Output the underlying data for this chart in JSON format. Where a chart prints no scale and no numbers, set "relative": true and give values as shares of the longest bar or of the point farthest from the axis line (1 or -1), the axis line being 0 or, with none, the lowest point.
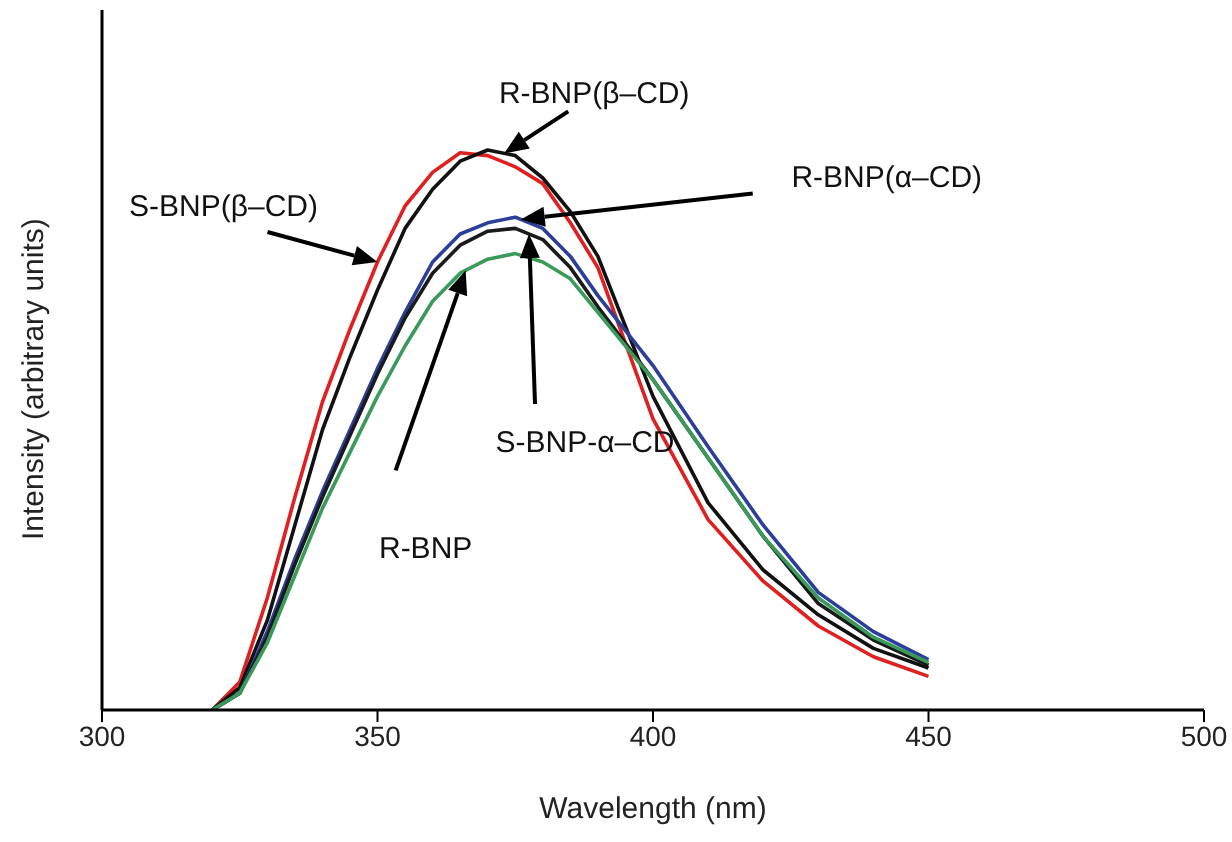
{
  "chart_data": {
    "type": "line",
    "xlabel": "Wavelength (nm)",
    "ylabel": "Intensity (arbitrary units)",
    "relative": true,
    "xlim": [
      300,
      500
    ],
    "xticks": [
      300,
      350,
      400,
      450,
      500
    ],
    "marker": "none",
    "line_style": "solid",
    "x": [
      320,
      325,
      330,
      335,
      340,
      345,
      350,
      355,
      360,
      365,
      370,
      375,
      380,
      385,
      390,
      400,
      410,
      420,
      430,
      440,
      450
    ],
    "series": [
      {
        "name": "S-BNP(β–CD)",
        "color": "#e02020",
        "values": [
          0,
          0.05,
          0.2,
          0.38,
          0.55,
          0.68,
          0.8,
          0.9,
          0.96,
          0.995,
          0.99,
          0.97,
          0.94,
          0.87,
          0.79,
          0.52,
          0.34,
          0.23,
          0.15,
          0.095,
          0.06
        ]
      },
      {
        "name": "R-BNP(β–CD)",
        "color": "#111111",
        "values": [
          0,
          0.04,
          0.16,
          0.33,
          0.5,
          0.63,
          0.75,
          0.86,
          0.93,
          0.98,
          1,
          0.99,
          0.95,
          0.89,
          0.81,
          0.56,
          0.37,
          0.25,
          0.17,
          0.11,
          0.075
        ]
      },
      {
        "name": "R-BNP(α–CD)",
        "color": "#2b3f9a",
        "values": [
          0,
          0.03,
          0.14,
          0.27,
          0.39,
          0.5,
          0.61,
          0.71,
          0.8,
          0.85,
          0.87,
          0.88,
          0.86,
          0.81,
          0.74,
          0.615,
          0.47,
          0.33,
          0.21,
          0.14,
          0.09
        ]
      },
      {
        "name": "S-BNP-α–CD",
        "color": "#1a1a1a",
        "values": [
          0,
          0.03,
          0.13,
          0.26,
          0.38,
          0.49,
          0.6,
          0.7,
          0.78,
          0.83,
          0.855,
          0.86,
          0.84,
          0.79,
          0.72,
          0.59,
          0.45,
          0.31,
          0.19,
          0.125,
          0.08
        ]
      },
      {
        "name": "R-BNP",
        "color": "#3a9a5a",
        "values": [
          0,
          0.03,
          0.12,
          0.24,
          0.36,
          0.46,
          0.56,
          0.65,
          0.73,
          0.78,
          0.805,
          0.815,
          0.8,
          0.77,
          0.71,
          0.59,
          0.45,
          0.31,
          0.2,
          0.13,
          0.085
        ]
      }
    ]
  }
}
